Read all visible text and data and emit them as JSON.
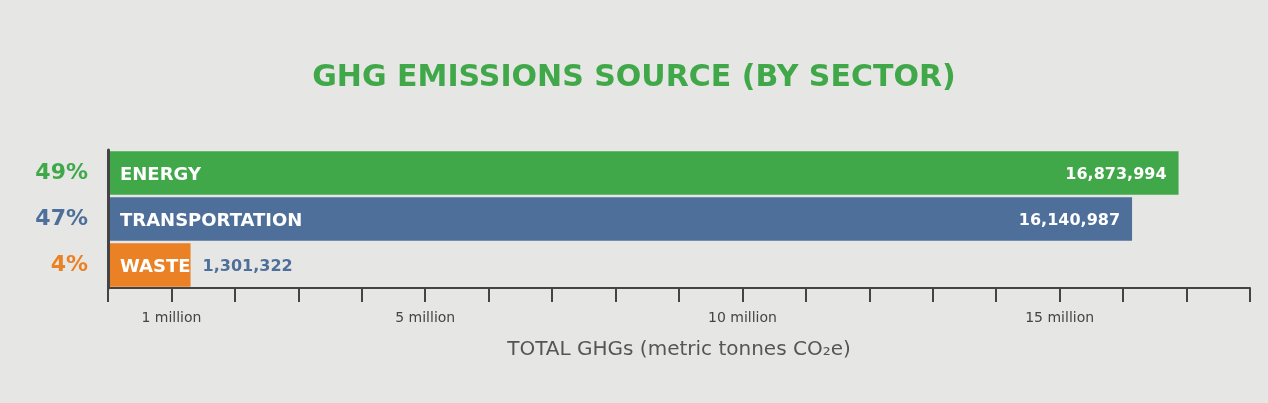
{
  "chart_data": {
    "type": "bar",
    "orientation": "horizontal",
    "title": "GHG EMISSIONS SOURCE (BY SECTOR)",
    "xlabel": "TOTAL GHGs (metric tonnes CO₂e)",
    "categories": [
      "ENERGY",
      "TRANSPORTATION",
      "WASTE"
    ],
    "values": [
      16873994,
      16140987,
      1301322
    ],
    "colors": [
      "#41a84a",
      "#4e6f9a",
      "#eb8125"
    ],
    "value_labels": [
      "16,873,994",
      "16,140,987",
      "1,301,322"
    ],
    "xlim": [
      0,
      18000000
    ],
    "xticks": [
      {
        "value": 0,
        "label": null
      },
      {
        "value": 1000000,
        "label": "1 million"
      },
      {
        "value": 2000000,
        "label": null
      },
      {
        "value": 3000000,
        "label": null
      },
      {
        "value": 4000000,
        "label": null
      },
      {
        "value": 5000000,
        "label": "5 million"
      },
      {
        "value": 6000000,
        "label": null
      },
      {
        "value": 7000000,
        "label": null
      },
      {
        "value": 8000000,
        "label": null
      },
      {
        "value": 9000000,
        "label": null
      },
      {
        "value": 10000000,
        "label": "10 million"
      },
      {
        "value": 11000000,
        "label": null
      },
      {
        "value": 12000000,
        "label": null
      },
      {
        "value": 13000000,
        "label": null
      },
      {
        "value": 14000000,
        "label": null
      },
      {
        "value": 15000000,
        "label": "15 million"
      },
      {
        "value": 16000000,
        "label": null
      },
      {
        "value": 17000000,
        "label": null
      },
      {
        "value": 18000000,
        "label": null
      }
    ],
    "annotations": [
      "49%",
      "47%",
      "4%"
    ],
    "grid": false
  }
}
